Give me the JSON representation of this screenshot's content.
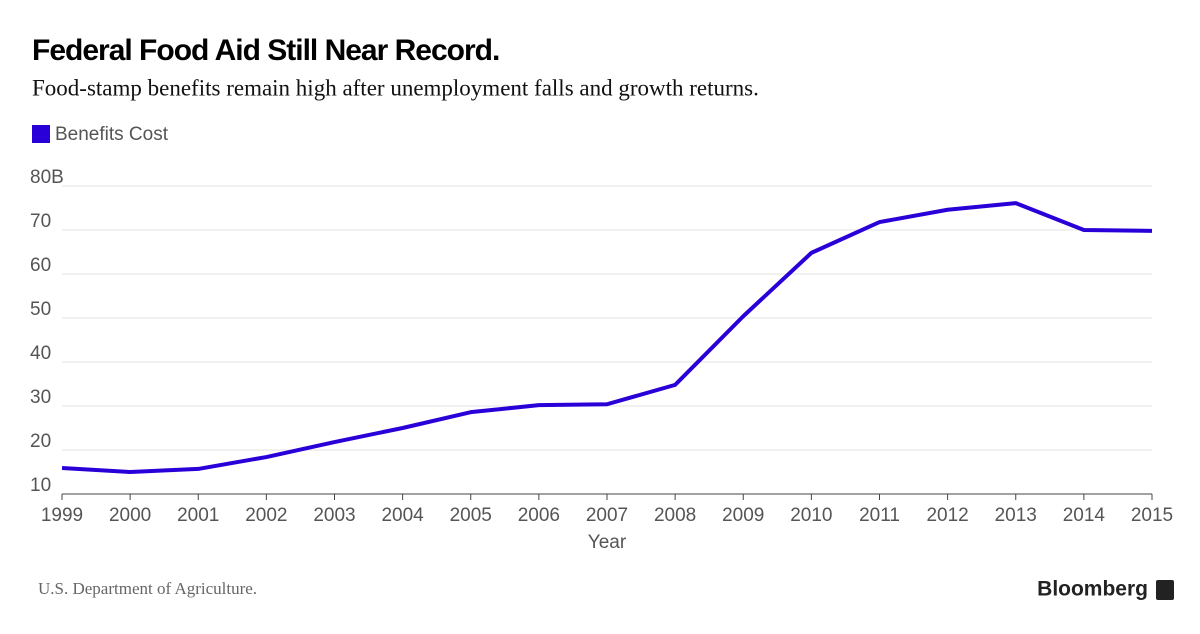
{
  "chart_data": {
    "type": "line",
    "title": "Federal Food Aid Still Near Record.",
    "subtitle": "Food-stamp benefits remain high after unemployment falls and growth returns.",
    "x_label": "Year",
    "x": [
      1999,
      2000,
      2001,
      2002,
      2003,
      2004,
      2005,
      2006,
      2007,
      2008,
      2009,
      2010,
      2011,
      2012,
      2013,
      2014,
      2015
    ],
    "series": [
      {
        "name": "Benefits Cost",
        "color": "#2a00d8",
        "values": [
          15.9,
          15.0,
          15.7,
          18.4,
          21.8,
          25.0,
          28.6,
          30.2,
          30.4,
          34.8,
          50.4,
          64.8,
          71.8,
          74.6,
          76.1,
          70.0,
          69.8
        ]
      }
    ],
    "xlim": [
      1999,
      2015
    ],
    "xticks": [
      1999,
      2000,
      2001,
      2002,
      2003,
      2004,
      2005,
      2006,
      2007,
      2008,
      2009,
      2010,
      2011,
      2012,
      2013,
      2014,
      2015
    ],
    "ylim": [
      10,
      80
    ],
    "yticks": [
      10,
      20,
      30,
      40,
      50,
      60,
      70,
      {
        "value": 80,
        "label": "80B"
      }
    ],
    "grid": true,
    "source": "U.S. Department of Agriculture.",
    "brand": "Bloomberg"
  }
}
